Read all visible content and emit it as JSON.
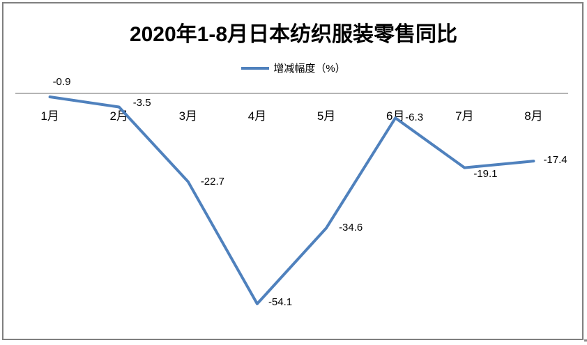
{
  "frame": {
    "border_color": "#7f7f7f"
  },
  "chart_data": {
    "type": "line",
    "title": "2020年1-8月日本纺织服装零售同比",
    "xlabel": "",
    "ylabel": "",
    "categories": [
      "1月",
      "2月",
      "3月",
      "4月",
      "5月",
      "6月",
      "7月",
      "8月"
    ],
    "series": [
      {
        "name": "增减幅度（%）",
        "color": "#4f81bd",
        "values": [
          -0.9,
          -3.5,
          -22.7,
          -54.1,
          -34.6,
          -6.3,
          -19.1,
          -17.4
        ]
      }
    ],
    "data_labels": [
      "-0.9",
      "-3.5",
      "-22.7",
      "-54.1",
      "-34.6",
      "-6.3",
      "-19.1",
      "-17.4"
    ],
    "ylim": [
      -60,
      0
    ],
    "grid": false,
    "legend_position": "top",
    "axis_color": "#9b9b9b",
    "x_axis_line_at_zero": true,
    "y_axis_labels_visible": false
  }
}
